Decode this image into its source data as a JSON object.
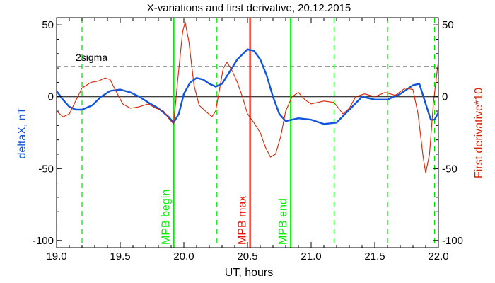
{
  "chart_data": {
    "type": "line",
    "title": "X-variations and first derivative, 20.12.2015",
    "xlabel": "UT, hours",
    "ylabel_left": "deltaX, nT",
    "ylabel_right": "First derivative*10",
    "xlim": [
      19.0,
      22.0
    ],
    "ylim": [
      -105,
      55
    ],
    "x_ticks": [
      19.0,
      19.5,
      20.0,
      20.5,
      21.0,
      21.5,
      22.0
    ],
    "x_tick_labels": [
      "19.0",
      "19.5",
      "20.0",
      "20.5",
      "21.0",
      "21.5",
      "22.0"
    ],
    "y_ticks": [
      50,
      0,
      -50,
      -100
    ],
    "y_tick_labels": [
      "50",
      "0",
      "-50",
      "-100"
    ],
    "hlines": [
      {
        "y": 0,
        "style": "solid",
        "color": "#000000"
      },
      {
        "y": 21,
        "style": "dashed",
        "color": "#000000",
        "label": "2sigma"
      }
    ],
    "vlines_dashed": {
      "color": "#00dd00",
      "x": [
        19.2,
        20.26,
        21.18,
        21.6,
        21.97
      ]
    },
    "vlines_solid": [
      {
        "x": 19.92,
        "label": "MPB begin",
        "color": "#00ee00"
      },
      {
        "x": 20.52,
        "label": "MPB max",
        "color": "#ee1100"
      },
      {
        "x": 20.84,
        "label": "MPB end",
        "color": "#00ee00"
      }
    ],
    "series": [
      {
        "name": "deltaX, nT",
        "color": "#1155dd",
        "points": [
          [
            19.0,
            4
          ],
          [
            19.05,
            -2
          ],
          [
            19.1,
            -7
          ],
          [
            19.15,
            -9
          ],
          [
            19.2,
            -9
          ],
          [
            19.28,
            -6
          ],
          [
            19.35,
            0
          ],
          [
            19.42,
            4
          ],
          [
            19.5,
            5
          ],
          [
            19.58,
            3
          ],
          [
            19.65,
            0
          ],
          [
            19.72,
            -4
          ],
          [
            19.8,
            -8
          ],
          [
            19.88,
            -14
          ],
          [
            19.92,
            -18
          ],
          [
            19.96,
            -12
          ],
          [
            20.0,
            2
          ],
          [
            20.05,
            10
          ],
          [
            20.1,
            13
          ],
          [
            20.15,
            12
          ],
          [
            20.2,
            9
          ],
          [
            20.25,
            7
          ],
          [
            20.3,
            9
          ],
          [
            20.35,
            16
          ],
          [
            20.42,
            26
          ],
          [
            20.5,
            33
          ],
          [
            20.55,
            32
          ],
          [
            20.6,
            26
          ],
          [
            20.65,
            15
          ],
          [
            20.7,
            0
          ],
          [
            20.75,
            -12
          ],
          [
            20.8,
            -17
          ],
          [
            20.85,
            -16
          ],
          [
            20.9,
            -15
          ],
          [
            21.0,
            -16
          ],
          [
            21.1,
            -19
          ],
          [
            21.2,
            -18
          ],
          [
            21.3,
            -9
          ],
          [
            21.4,
            0
          ],
          [
            21.5,
            -2
          ],
          [
            21.6,
            -2
          ],
          [
            21.7,
            2
          ],
          [
            21.8,
            8
          ],
          [
            21.85,
            9
          ],
          [
            21.9,
            -5
          ],
          [
            21.94,
            -16
          ],
          [
            21.97,
            -16
          ],
          [
            22.0,
            -11
          ]
        ]
      },
      {
        "name": "First derivative*10",
        "color": "#dd2200",
        "points": [
          [
            19.0,
            -10
          ],
          [
            19.05,
            -14
          ],
          [
            19.1,
            -12
          ],
          [
            19.15,
            -3
          ],
          [
            19.2,
            6
          ],
          [
            19.27,
            10
          ],
          [
            19.33,
            11
          ],
          [
            19.38,
            13
          ],
          [
            19.42,
            12
          ],
          [
            19.46,
            5
          ],
          [
            19.52,
            -5
          ],
          [
            19.58,
            -8
          ],
          [
            19.65,
            -7
          ],
          [
            19.72,
            -5
          ],
          [
            19.78,
            -8
          ],
          [
            19.84,
            -10
          ],
          [
            19.88,
            -15
          ],
          [
            19.92,
            -19
          ],
          [
            19.95,
            10
          ],
          [
            19.99,
            45
          ],
          [
            20.01,
            52
          ],
          [
            20.04,
            38
          ],
          [
            20.08,
            8
          ],
          [
            20.12,
            -6
          ],
          [
            20.17,
            -10
          ],
          [
            20.22,
            -14
          ],
          [
            20.25,
            -10
          ],
          [
            20.28,
            5
          ],
          [
            20.31,
            20
          ],
          [
            20.34,
            24
          ],
          [
            20.38,
            18
          ],
          [
            20.42,
            10
          ],
          [
            20.46,
            0
          ],
          [
            20.5,
            -12
          ],
          [
            20.55,
            -18
          ],
          [
            20.6,
            -25
          ],
          [
            20.64,
            -35
          ],
          [
            20.68,
            -42
          ],
          [
            20.72,
            -40
          ],
          [
            20.76,
            -28
          ],
          [
            20.8,
            -10
          ],
          [
            20.85,
            0
          ],
          [
            20.9,
            3
          ],
          [
            20.95,
            -2
          ],
          [
            21.0,
            -5
          ],
          [
            21.05,
            -4
          ],
          [
            21.1,
            -3
          ],
          [
            21.18,
            -4
          ],
          [
            21.25,
            -12
          ],
          [
            21.3,
            -8
          ],
          [
            21.35,
            0
          ],
          [
            21.42,
            2
          ],
          [
            21.5,
            0
          ],
          [
            21.58,
            3
          ],
          [
            21.66,
            1
          ],
          [
            21.74,
            6
          ],
          [
            21.8,
            5
          ],
          [
            21.84,
            -12
          ],
          [
            21.88,
            -42
          ],
          [
            21.9,
            -53
          ],
          [
            21.93,
            -40
          ],
          [
            21.96,
            -5
          ],
          [
            21.99,
            18
          ],
          [
            22.0,
            25
          ]
        ]
      }
    ]
  }
}
